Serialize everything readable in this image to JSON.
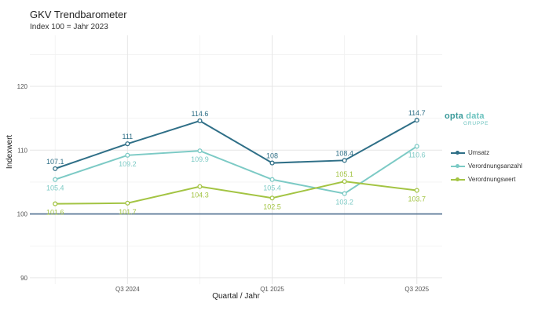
{
  "header": {
    "title": "GKV Trendbarometer",
    "subtitle": "Index 100 = Jahr 2023"
  },
  "logo": {
    "word1": "opta",
    "word2": "data",
    "sub": "GRUPPE"
  },
  "chart_data": {
    "type": "line",
    "xlabel": "Quartal / Jahr",
    "ylabel": "Indexwert",
    "x_ticks": [
      "Q3 2024",
      "Q1 2025",
      "Q3 2025"
    ],
    "x_tick_positions": [
      2,
      4,
      6
    ],
    "x": [
      1,
      2,
      3,
      4,
      5,
      6
    ],
    "ylim": [
      89,
      128
    ],
    "y_ticks": [
      90,
      100,
      110,
      120
    ],
    "reference_line": 100,
    "grid": true,
    "legend_position": "right",
    "series": [
      {
        "name": "Umsatz",
        "color": "#2f6f87",
        "values": [
          107.1,
          111,
          114.6,
          108,
          108.4,
          114.7
        ],
        "labels": [
          "107.1",
          "111",
          "114.6",
          "108",
          "108.4",
          "114.7"
        ],
        "label_pos": [
          "above",
          "above",
          "above",
          "above",
          "above",
          "above"
        ]
      },
      {
        "name": "Verordnungsanzahl",
        "color": "#7ccac5",
        "values": [
          105.4,
          109.2,
          109.9,
          105.4,
          103.2,
          110.6
        ],
        "labels": [
          "105.4",
          "109.2",
          "109.9",
          "105.4",
          "103.2",
          "110.6"
        ],
        "label_pos": [
          "below",
          "below",
          "below",
          "below",
          "below",
          "below"
        ]
      },
      {
        "name": "Verordnungswert",
        "color": "#a3c443",
        "values": [
          101.6,
          101.7,
          104.3,
          102.5,
          105.1,
          103.7
        ],
        "labels": [
          "101.6",
          "101.7",
          "104.3",
          "102.5",
          "105.1",
          "103.7"
        ],
        "label_pos": [
          "below",
          "below",
          "below",
          "below",
          "above",
          "below"
        ]
      }
    ]
  }
}
